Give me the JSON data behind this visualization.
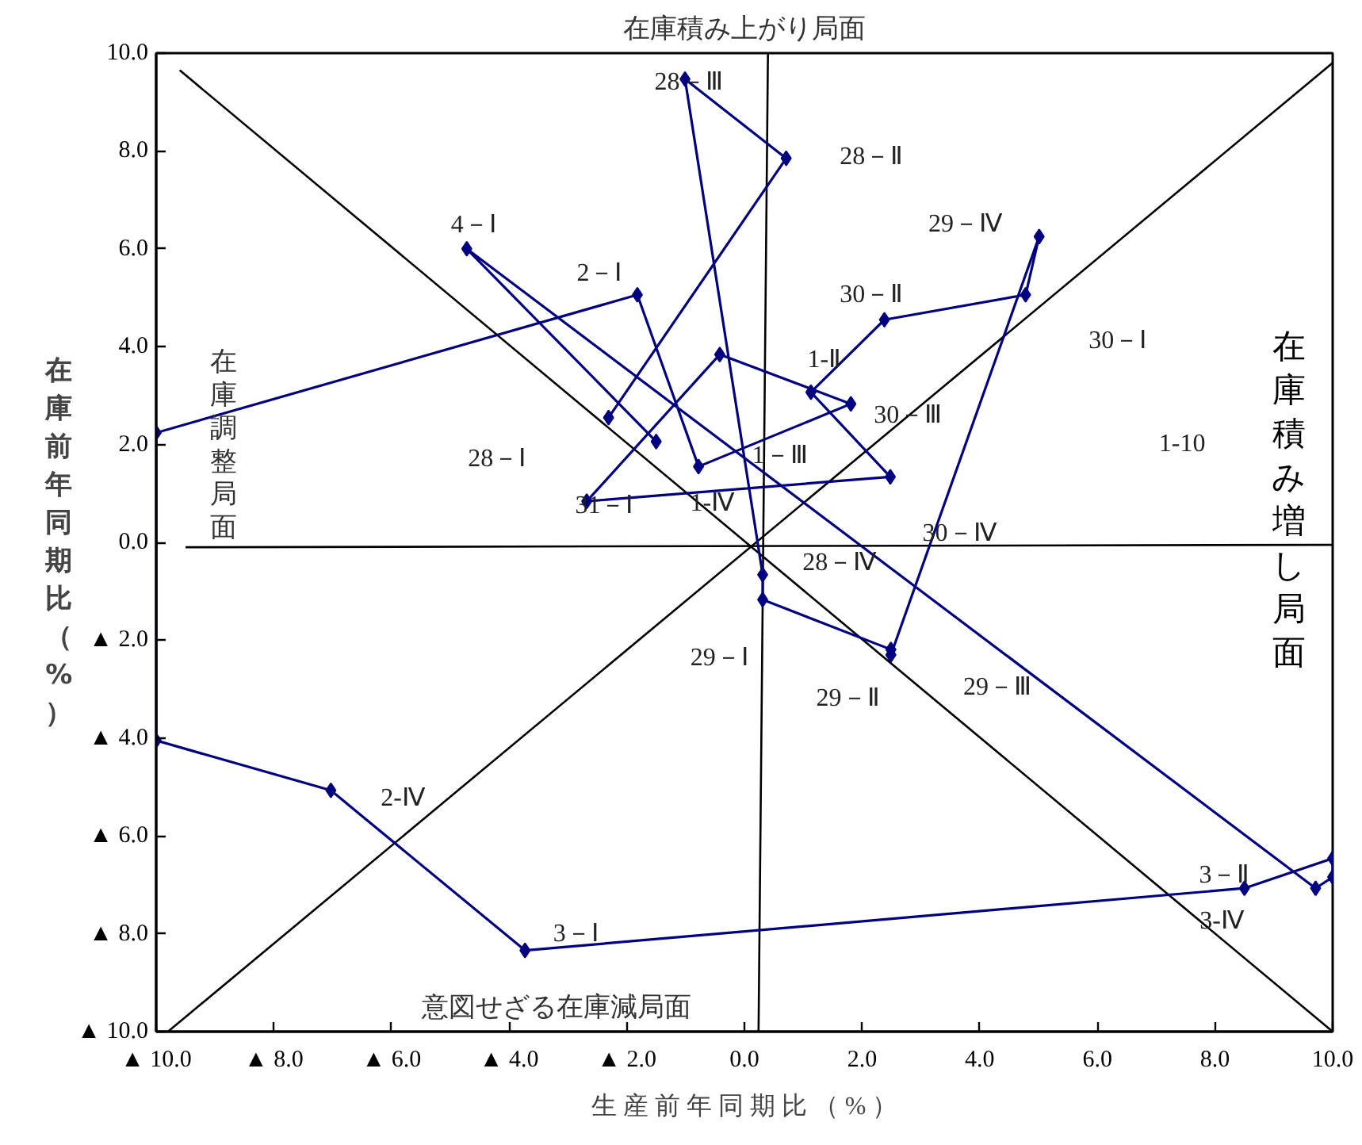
{
  "chart_data": {
    "type": "line",
    "xlabel": "生 産 前 年 同 期 比 （ % ）",
    "ylabel": "在庫前年同期比（%）",
    "xlim": [
      -10,
      10
    ],
    "ylim": [
      -10,
      10
    ],
    "xticks": [
      {
        "value": -10,
        "label": "▲ 10.0"
      },
      {
        "value": -8,
        "label": "▲ 8.0"
      },
      {
        "value": -6,
        "label": "▲ 6.0"
      },
      {
        "value": -4,
        "label": "▲ 4.0"
      },
      {
        "value": -2,
        "label": "▲ 2.0"
      },
      {
        "value": 0,
        "label": "0.0"
      },
      {
        "value": 2,
        "label": "2.0"
      },
      {
        "value": 4,
        "label": "4.0"
      },
      {
        "value": 6,
        "label": "6.0"
      },
      {
        "value": 8,
        "label": "8.0"
      },
      {
        "value": 10,
        "label": "10.0"
      }
    ],
    "yticks": [
      {
        "value": -10,
        "label": "▲ 10.0"
      },
      {
        "value": -8,
        "label": "▲ 8.0"
      },
      {
        "value": -6,
        "label": "▲ 6.0"
      },
      {
        "value": -4,
        "label": "▲ 4.0"
      },
      {
        "value": -2,
        "label": "▲ 2.0"
      },
      {
        "value": 0,
        "label": "0.0"
      },
      {
        "value": 2,
        "label": "2.0"
      },
      {
        "value": 4,
        "label": "4.0"
      },
      {
        "value": 6,
        "label": "6.0"
      },
      {
        "value": 8,
        "label": "8.0"
      },
      {
        "value": 10,
        "label": "10.0"
      }
    ],
    "grid": false,
    "series": [
      {
        "color": "#000000",
        "marker": "none",
        "x": [
          -9.6,
          10
        ],
        "values": [
          9.65,
          -10
        ]
      },
      {
        "color": "#000000",
        "marker": "none",
        "x": [
          -9.8,
          10
        ],
        "values": [
          -10,
          9.8
        ]
      },
      {
        "color": "#000000",
        "marker": "none",
        "x": [
          0.4,
          0.24
        ],
        "values": [
          10,
          -10
        ]
      },
      {
        "color": "#000000",
        "marker": "none",
        "x": [
          -9.5,
          10
        ],
        "values": [
          -0.1,
          -0.05
        ]
      },
      {
        "color": "#000080",
        "marker": "diamond",
        "x": [
          -2.31,
          0.71,
          -1.01,
          0.31,
          0.31,
          2.49,
          2.49,
          5.01,
          4.78,
          2.38,
          1.13,
          2.48,
          -2.68,
          -0.42,
          1.81,
          -0.78,
          -1.82,
          -10,
          -10,
          -7.03,
          -3.73,
          8.5,
          10,
          10,
          9.71,
          -4.72,
          -1.5
        ],
        "values": [
          2.55,
          7.85,
          9.47,
          -0.66,
          -1.17,
          -2.19,
          -2.3,
          6.25,
          5.06,
          4.55,
          3.07,
          1.34,
          0.84,
          3.84,
          2.83,
          1.55,
          5.06,
          2.24,
          -4.05,
          -5.07,
          -8.34,
          -7.07,
          -6.46,
          -6.84,
          -7.07,
          6.0,
          2.06
        ]
      }
    ],
    "annotations": [
      "在庫積み上がり局面",
      "在庫積み増し局面",
      "在庫調整局面",
      "意図せざる在庫減局面",
      "28－Ⅰ",
      "28－Ⅱ",
      "28－Ⅲ",
      "28－Ⅳ",
      "29－Ⅰ",
      "29－Ⅱ",
      "29－Ⅲ",
      "29－Ⅳ",
      "30－Ⅰ",
      "30－Ⅱ",
      "30－Ⅲ",
      "30－Ⅳ",
      "31－Ⅰ",
      "1-Ⅱ",
      "1－Ⅲ",
      "1-Ⅳ",
      "1-10",
      "2－Ⅰ",
      "2-Ⅳ",
      "3－Ⅰ",
      "3－Ⅱ",
      "3-Ⅳ",
      "4－Ⅰ"
    ]
  }
}
